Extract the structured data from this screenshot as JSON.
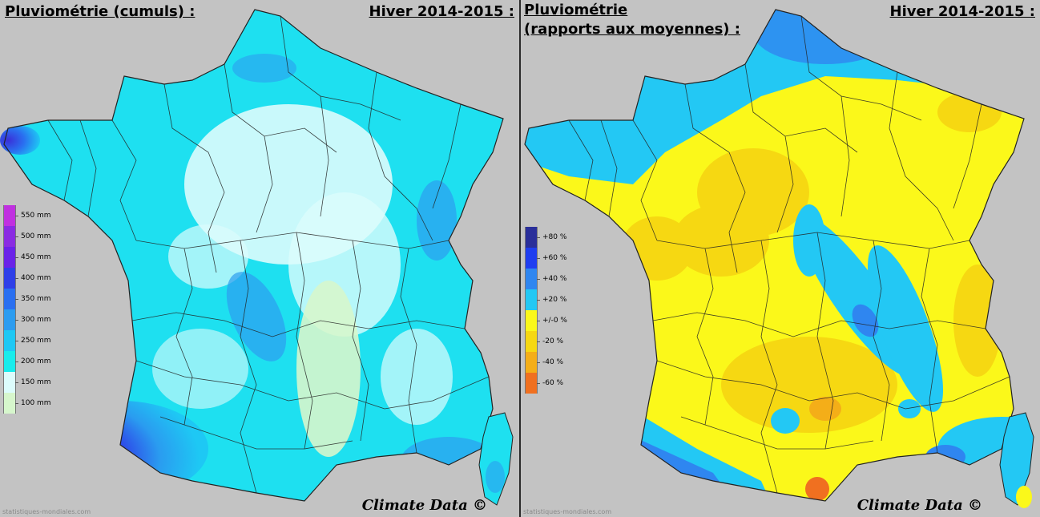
{
  "left_panel": {
    "title": "Pluviométrie (cumuls) :",
    "season": "Hiver 2014-2015 :",
    "brand": "Climate Data ©",
    "credit": "statistiques-mondiales.com",
    "legend": [
      {
        "label": "550 mm",
        "color": "#c030e0"
      },
      {
        "label": "500 mm",
        "color": "#8a2be2"
      },
      {
        "label": "450 mm",
        "color": "#6a22e8"
      },
      {
        "label": "400 mm",
        "color": "#2e3fe8"
      },
      {
        "label": "350 mm",
        "color": "#2a6ff0"
      },
      {
        "label": "300 mm",
        "color": "#2c9cf0"
      },
      {
        "label": "250 mm",
        "color": "#1ec8f4"
      },
      {
        "label": "200 mm",
        "color": "#18ecec"
      },
      {
        "label": "150 mm",
        "color": "#dcfcfc"
      },
      {
        "label": "100 mm",
        "color": "#d6f6cc"
      }
    ]
  },
  "right_panel": {
    "title_line1": "Pluviométrie",
    "title_line2": "(rapports aux moyennes) :",
    "season": "Hiver 2014-2015 :",
    "brand": "Climate Data ©",
    "credit": "statistiques-mondiales.com",
    "legend": [
      {
        "label": "+80 %",
        "color": "#2a2f9a"
      },
      {
        "label": "+60 %",
        "color": "#1f3ef0"
      },
      {
        "label": "+40 %",
        "color": "#2f86f0"
      },
      {
        "label": "+20 %",
        "color": "#23c8f4"
      },
      {
        "label": "+/-0 %",
        "color": "#fbf81a"
      },
      {
        "label": "-20 %",
        "color": "#f6d812"
      },
      {
        "label": "-40 %",
        "color": "#f4ae18"
      },
      {
        "label": "-60 %",
        "color": "#f07020"
      }
    ]
  }
}
